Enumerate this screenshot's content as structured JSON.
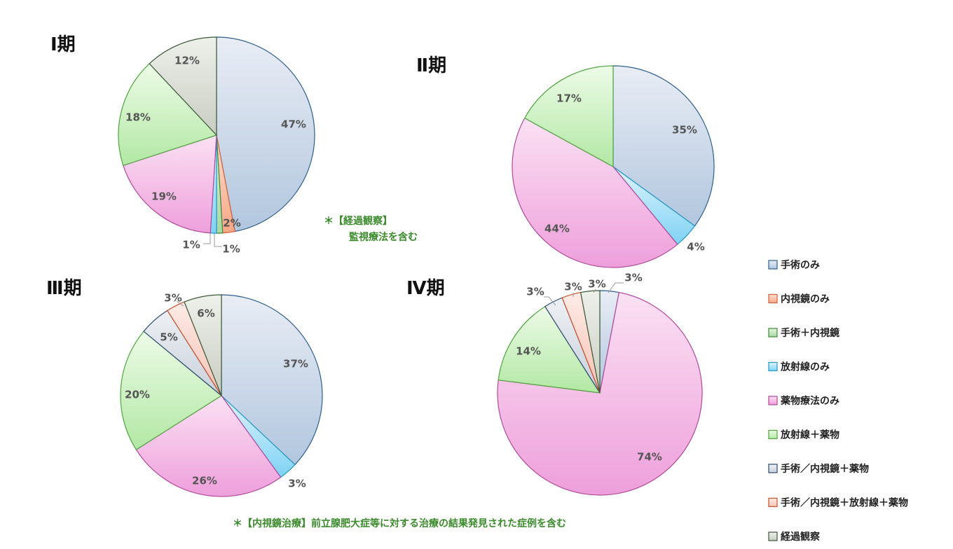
{
  "legend": [
    "手術のみ",
    "内視鏡のみ",
    "手術＋内視鏡",
    "放射線のみ",
    "薬物療法のみ",
    "放射線＋薬物",
    "手術／内視鏡＋薬物",
    "手術／内視鏡＋放射線＋薬物",
    "経過観察"
  ],
  "colors": {
    "手術のみ": {
      "light": "#e9edf5",
      "dark": "#b1c6de",
      "stroke": "#2f5f8a"
    },
    "内視鏡のみ": {
      "light": "#fde0d2",
      "dark": "#f6a886",
      "stroke": "#d7613a"
    },
    "手術＋内視鏡": {
      "light": "#e3f4e0",
      "dark": "#a8d8a2",
      "stroke": "#3f8a3a"
    },
    "放射線のみ": {
      "light": "#dff4fd",
      "dark": "#7fd2f4",
      "stroke": "#2499c9"
    },
    "薬物療法のみ": {
      "light": "#fbe1f3",
      "dark": "#ee9fdb",
      "stroke": "#b04a9a"
    },
    "放射線＋薬物": {
      "light": "#edfbe7",
      "dark": "#b2e8a4",
      "stroke": "#4fa53f"
    },
    "手術／内視鏡＋薬物": {
      "light": "#eef1f5",
      "dark": "#c8d0da",
      "stroke": "#2d4a6e"
    },
    "手術／内視鏡＋放射線＋薬物": {
      "light": "#fdebe6",
      "dark": "#f6c2b4",
      "stroke": "#c9522e"
    },
    "経過観察": {
      "light": "#eef0ea",
      "dark": "#c8cdc2",
      "stroke": "#3c5a3a"
    }
  },
  "notes": {
    "line1": "＊【経過観察】",
    "line2": "監視療法を含む",
    "bottom": "＊【内視鏡治療】前立腺肥大症等に対する治療の結果発見された症例を含む"
  },
  "chart_data": [
    {
      "type": "pie",
      "title": "Ⅰ期",
      "slices": [
        {
          "label": "手術のみ",
          "value": 47,
          "display": "47%"
        },
        {
          "label": "内視鏡のみ",
          "value": 2,
          "display": "2%"
        },
        {
          "label": "手術＋内視鏡",
          "value": 1,
          "display": "1%"
        },
        {
          "label": "放射線のみ",
          "value": 1,
          "display": "1%"
        },
        {
          "label": "薬物療法のみ",
          "value": 19,
          "display": "19%"
        },
        {
          "label": "放射線＋薬物",
          "value": 18,
          "display": "18%"
        },
        {
          "label": "経過観察",
          "value": 12,
          "display": "12%"
        }
      ]
    },
    {
      "type": "pie",
      "title": "Ⅱ期",
      "slices": [
        {
          "label": "手術のみ",
          "value": 35,
          "display": "35%"
        },
        {
          "label": "放射線のみ",
          "value": 4,
          "display": "4%"
        },
        {
          "label": "薬物療法のみ",
          "value": 44,
          "display": "44%"
        },
        {
          "label": "放射線＋薬物",
          "value": 17,
          "display": "17%"
        }
      ]
    },
    {
      "type": "pie",
      "title": "Ⅲ期",
      "slices": [
        {
          "label": "手術のみ",
          "value": 37,
          "display": "37%"
        },
        {
          "label": "放射線のみ",
          "value": 3,
          "display": "3%"
        },
        {
          "label": "薬物療法のみ",
          "value": 26,
          "display": "26%"
        },
        {
          "label": "放射線＋薬物",
          "value": 20,
          "display": "20%"
        },
        {
          "label": "手術／内視鏡＋薬物",
          "value": 5,
          "display": "5%"
        },
        {
          "label": "手術／内視鏡＋放射線＋薬物",
          "value": 3,
          "display": "3%"
        },
        {
          "label": "経過観察",
          "value": 6,
          "display": "6%"
        }
      ]
    },
    {
      "type": "pie",
      "title": "Ⅳ期",
      "slices": [
        {
          "label": "手術のみ",
          "value": 3,
          "display": "3%"
        },
        {
          "label": "薬物療法のみ",
          "value": 74,
          "display": "74%"
        },
        {
          "label": "放射線＋薬物",
          "value": 14,
          "display": "14%"
        },
        {
          "label": "手術／内視鏡＋薬物",
          "value": 3,
          "display": "3%"
        },
        {
          "label": "手術／内視鏡＋放射線＋薬物",
          "value": 3,
          "display": "3%"
        },
        {
          "label": "経過観察",
          "value": 3,
          "display": "3%"
        }
      ]
    }
  ]
}
